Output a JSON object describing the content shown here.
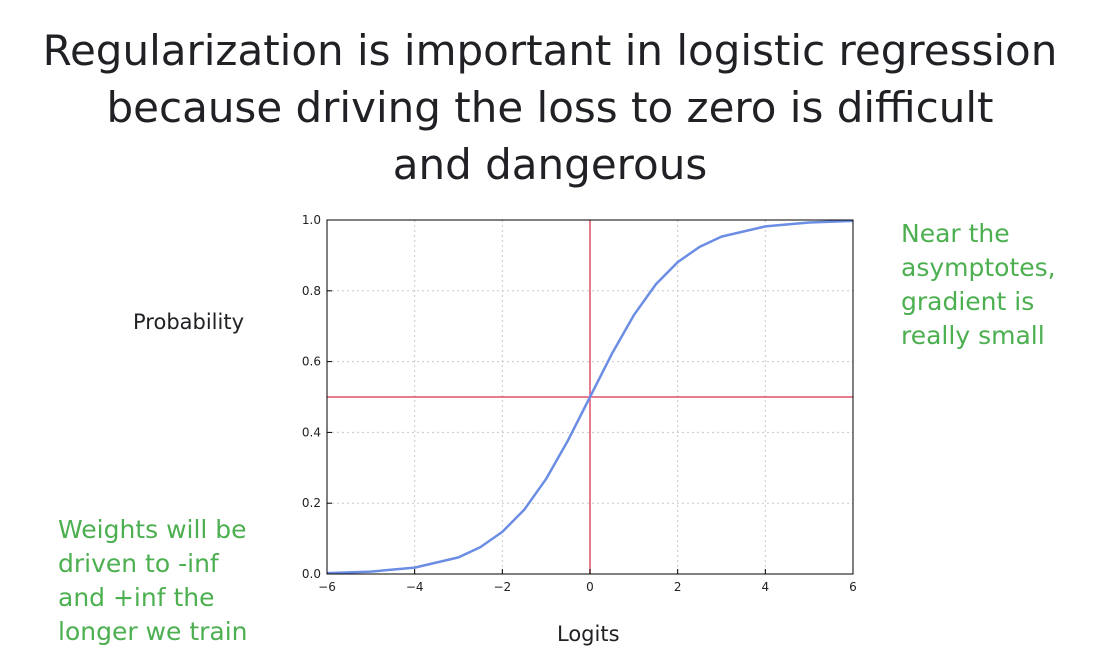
{
  "slide": {
    "title_lines": [
      "Regularization is important in logistic regression",
      "because driving the loss to zero is difficult",
      "and dangerous"
    ],
    "note_right_lines": [
      "Near the",
      "asymptotes,",
      "gradient is",
      "really small"
    ],
    "note_left_lines": [
      "Weights will be",
      "driven to -inf",
      "and +inf the",
      "longer we train"
    ],
    "accent_color": "#4caf50"
  },
  "chart_data": {
    "type": "line",
    "title": "",
    "xlabel": "Logits",
    "ylabel": "Probability",
    "xlim": [
      -6,
      6
    ],
    "ylim": [
      0.0,
      1.0
    ],
    "x_ticks": [
      -6,
      -4,
      -2,
      0,
      2,
      4,
      6
    ],
    "x_tick_labels": [
      "−6",
      "−4",
      "−2",
      "0",
      "2",
      "4",
      "6"
    ],
    "y_ticks": [
      0.0,
      0.2,
      0.4,
      0.6,
      0.8,
      1.0
    ],
    "y_tick_labels": [
      "0.0",
      "0.2",
      "0.4",
      "0.6",
      "0.8",
      "1.0"
    ],
    "grid": true,
    "series": [
      {
        "name": "sigmoid",
        "color": "#6b8de3",
        "x": [
          -6,
          -5,
          -4,
          -3,
          -2.5,
          -2,
          -1.5,
          -1,
          -0.5,
          0,
          0.5,
          1,
          1.5,
          2,
          2.5,
          3,
          4,
          5,
          6
        ],
        "values": [
          0.0025,
          0.0067,
          0.018,
          0.047,
          0.076,
          0.119,
          0.182,
          0.269,
          0.378,
          0.5,
          0.622,
          0.731,
          0.818,
          0.881,
          0.924,
          0.953,
          0.982,
          0.993,
          0.9975
        ]
      }
    ],
    "reference_lines": [
      {
        "orientation": "horizontal",
        "value": 0.5,
        "color": "#e0506a"
      },
      {
        "orientation": "vertical",
        "value": 0,
        "color": "#e0506a"
      }
    ]
  }
}
